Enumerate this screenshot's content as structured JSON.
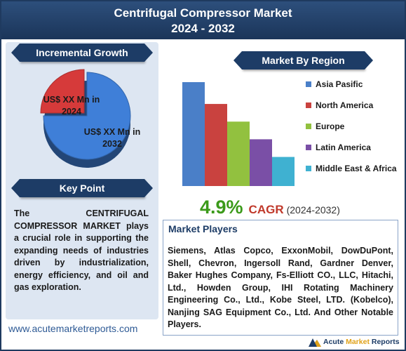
{
  "header": {
    "title_line1": "Centrifugal Compressor Market",
    "title_line2": "2024 - 2032"
  },
  "incremental": {
    "title": "Incremental Growth",
    "label_2024": [
      "US$ XX Mn in",
      "2024"
    ],
    "label_2032": [
      "US$ XX Mn in",
      "2032"
    ]
  },
  "keypoint": {
    "title": "Key Point",
    "text": "The CENTRIFUGAL COMPRESSOR MARKET plays a crucial role in supporting the expanding needs of industries driven by industrialization, energy efficiency, and oil and gas exploration."
  },
  "region": {
    "title": "Market By Region"
  },
  "cagr": {
    "value": "4.9%",
    "label": "CAGR",
    "period": "(2024-2032)"
  },
  "players": {
    "title": "Market Players",
    "text": "Siemens, Atlas Copco, ExxonMobil, DowDuPont, Shell, Chevron, Ingersoll Rand, Gardner Denver, Baker Hughes Company, Fs-Elliott CO., LLC, Hitachi, Ltd., Howden Group, IHI Rotating Machinery Engineering Co., Ltd., Kobe Steel, LTD. (Kobelco), Nanjing SAG Equipment Co., Ltd. And Other Notable Players."
  },
  "footer": {
    "website": "www.acutemarketreports.com",
    "logo_main": "Acute ",
    "logo_accent": "Market",
    "logo_end": " Reports"
  },
  "chart_data": [
    {
      "type": "pie",
      "title": "Incremental Growth",
      "categories": [
        "2024",
        "2032"
      ],
      "values": [
        25,
        75
      ],
      "colors": [
        "#d63a3a",
        "#3f7fd8"
      ]
    },
    {
      "type": "bar",
      "title": "Market By Region",
      "categories": [
        "Asia Pasific",
        "North America",
        "Europe",
        "Latin America",
        "Middle East & Africa"
      ],
      "values": [
        100,
        79,
        62,
        45,
        28
      ],
      "colors": [
        "#4a7fc8",
        "#c9423f",
        "#92c13f",
        "#7a4fa6",
        "#3fb1d1"
      ],
      "legend_position": "right"
    }
  ]
}
